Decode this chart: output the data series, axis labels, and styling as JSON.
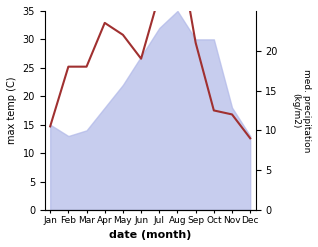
{
  "months": [
    "Jan",
    "Feb",
    "Mar",
    "Apr",
    "May",
    "Jun",
    "Jul",
    "Aug",
    "Sep",
    "Oct",
    "Nov",
    "Dec"
  ],
  "max_temp": [
    15.0,
    13.0,
    14.0,
    18.0,
    22.0,
    27.0,
    32.0,
    35.0,
    30.0,
    30.0,
    18.0,
    13.0
  ],
  "precipitation": [
    10.5,
    18.0,
    18.0,
    23.5,
    22.0,
    19.0,
    27.0,
    34.0,
    21.0,
    12.5,
    12.0,
    9.0
  ],
  "temp_fill_color": "#b0b8e8",
  "precip_line_color": "#a03030",
  "temp_ylim": [
    0,
    35
  ],
  "temp_yticks": [
    0,
    5,
    10,
    15,
    20,
    25,
    30,
    35
  ],
  "precip_ylim": [
    0,
    25
  ],
  "precip_yticks": [
    0,
    5,
    10,
    15,
    20
  ],
  "precip_yticklabels": [
    "0",
    "5",
    "10",
    "15",
    "20"
  ],
  "xlabel": "date (month)",
  "ylabel_left": "max temp (C)",
  "ylabel_right": "med. precipitation\n(kg/m2)",
  "background_color": "#ffffff"
}
